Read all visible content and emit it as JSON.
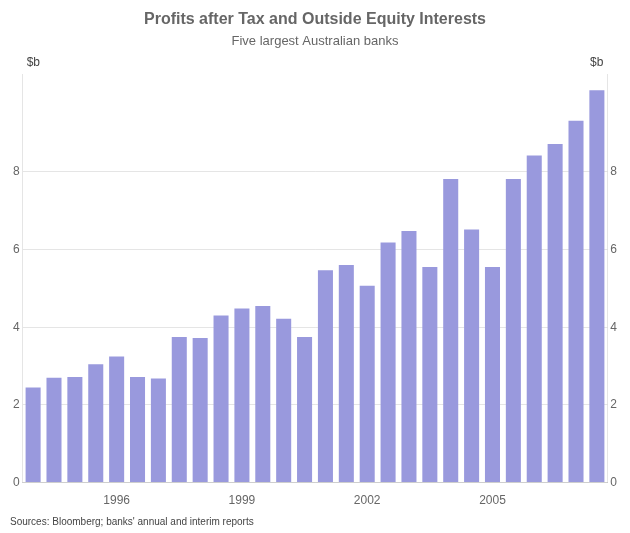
{
  "chart_data": {
    "type": "bar",
    "title": "Profits after Tax and Outside Equity Interests",
    "subtitle": "Five largest Australian banks",
    "ylabel": "$b",
    "y2label": "$b",
    "annotations": [
      "Sources: Bloomberg; banks' annual and interim reports"
    ],
    "categories": [
      null,
      null,
      null,
      null,
      "1996",
      null,
      null,
      null,
      null,
      null,
      "1999",
      null,
      null,
      null,
      null,
      null,
      "2002",
      null,
      null,
      null,
      null,
      null,
      "2005",
      null,
      null,
      null,
      null,
      null
    ],
    "values": [
      2.45,
      2.7,
      2.72,
      3.05,
      3.25,
      2.72,
      2.68,
      3.75,
      3.72,
      4.3,
      4.48,
      4.55,
      4.22,
      3.75,
      5.47,
      5.6,
      5.07,
      6.18,
      6.48,
      5.55,
      7.82,
      6.52,
      5.55,
      7.82,
      8.42,
      8.72,
      9.32,
      10.1
    ],
    "color": "#9999dd",
    "ylim": [
      0,
      10.5
    ],
    "yticks": [
      0,
      2,
      4,
      6,
      8
    ],
    "y2lim": [
      0,
      10.5
    ],
    "y2ticks": [
      0,
      2,
      4,
      6,
      8
    ],
    "grid": true
  }
}
